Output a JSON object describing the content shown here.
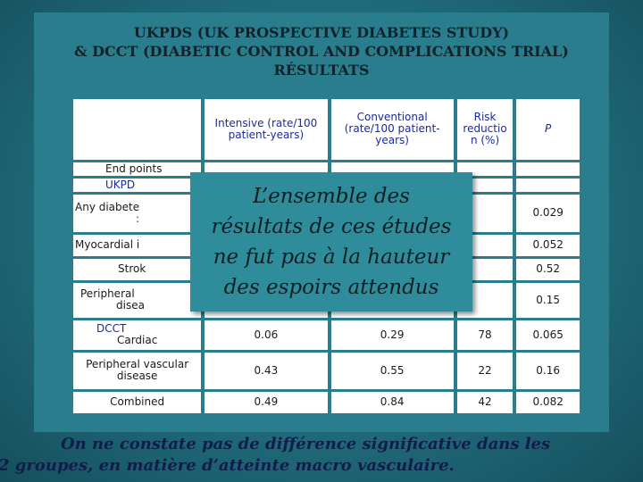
{
  "title": {
    "line1": "UKPDS (UK PROSPECTIVE DIABETES STUDY)",
    "line2": "& DCCT (DIABETIC CONTROL AND COMPLICATIONS TRIAL)",
    "line3": "RÉSULTATS"
  },
  "table": {
    "headers": {
      "intensive": "Intensive (rate/100 patient-years)",
      "conventional": "Conventional (rate/100 patient-years)",
      "risk": "Risk reductio n (%)",
      "p": "P"
    },
    "end_points_label": "End points",
    "ukpds_label": "UKPD",
    "ukpds_rows": [
      {
        "label": "Any diabete",
        "sub": ":",
        "p": "0.029"
      },
      {
        "label": "Myocardial i",
        "sub": "",
        "p": "0.052"
      },
      {
        "label": "Strok",
        "sub": "",
        "p": "0.52"
      },
      {
        "label": "Peripheral",
        "sub": "disea",
        "p": "0.15"
      }
    ],
    "dcct_label": "DCCT",
    "dcct_rows": [
      {
        "label": "Cardiac",
        "intensive": "0.06",
        "conventional": "0.29",
        "risk": "78",
        "p": "0.065"
      },
      {
        "label": "Peripheral vascular disease",
        "intensive": "0.43",
        "conventional": "0.55",
        "risk": "22",
        "p": "0.16"
      },
      {
        "label": "Combined",
        "intensive": "0.49",
        "conventional": "0.84",
        "risk": "42",
        "p": "0.082"
      }
    ]
  },
  "overlay": {
    "line1": "L’ensemble des",
    "line2": "résultats de ces études",
    "line3": "ne fut pas à la hauteur",
    "line4": "des espoirs attendus"
  },
  "conclusion": {
    "line1": "On ne constate pas de différence significative dans les",
    "line2": "2 groupes, en matière  d’atteinte macro vasculaire."
  }
}
